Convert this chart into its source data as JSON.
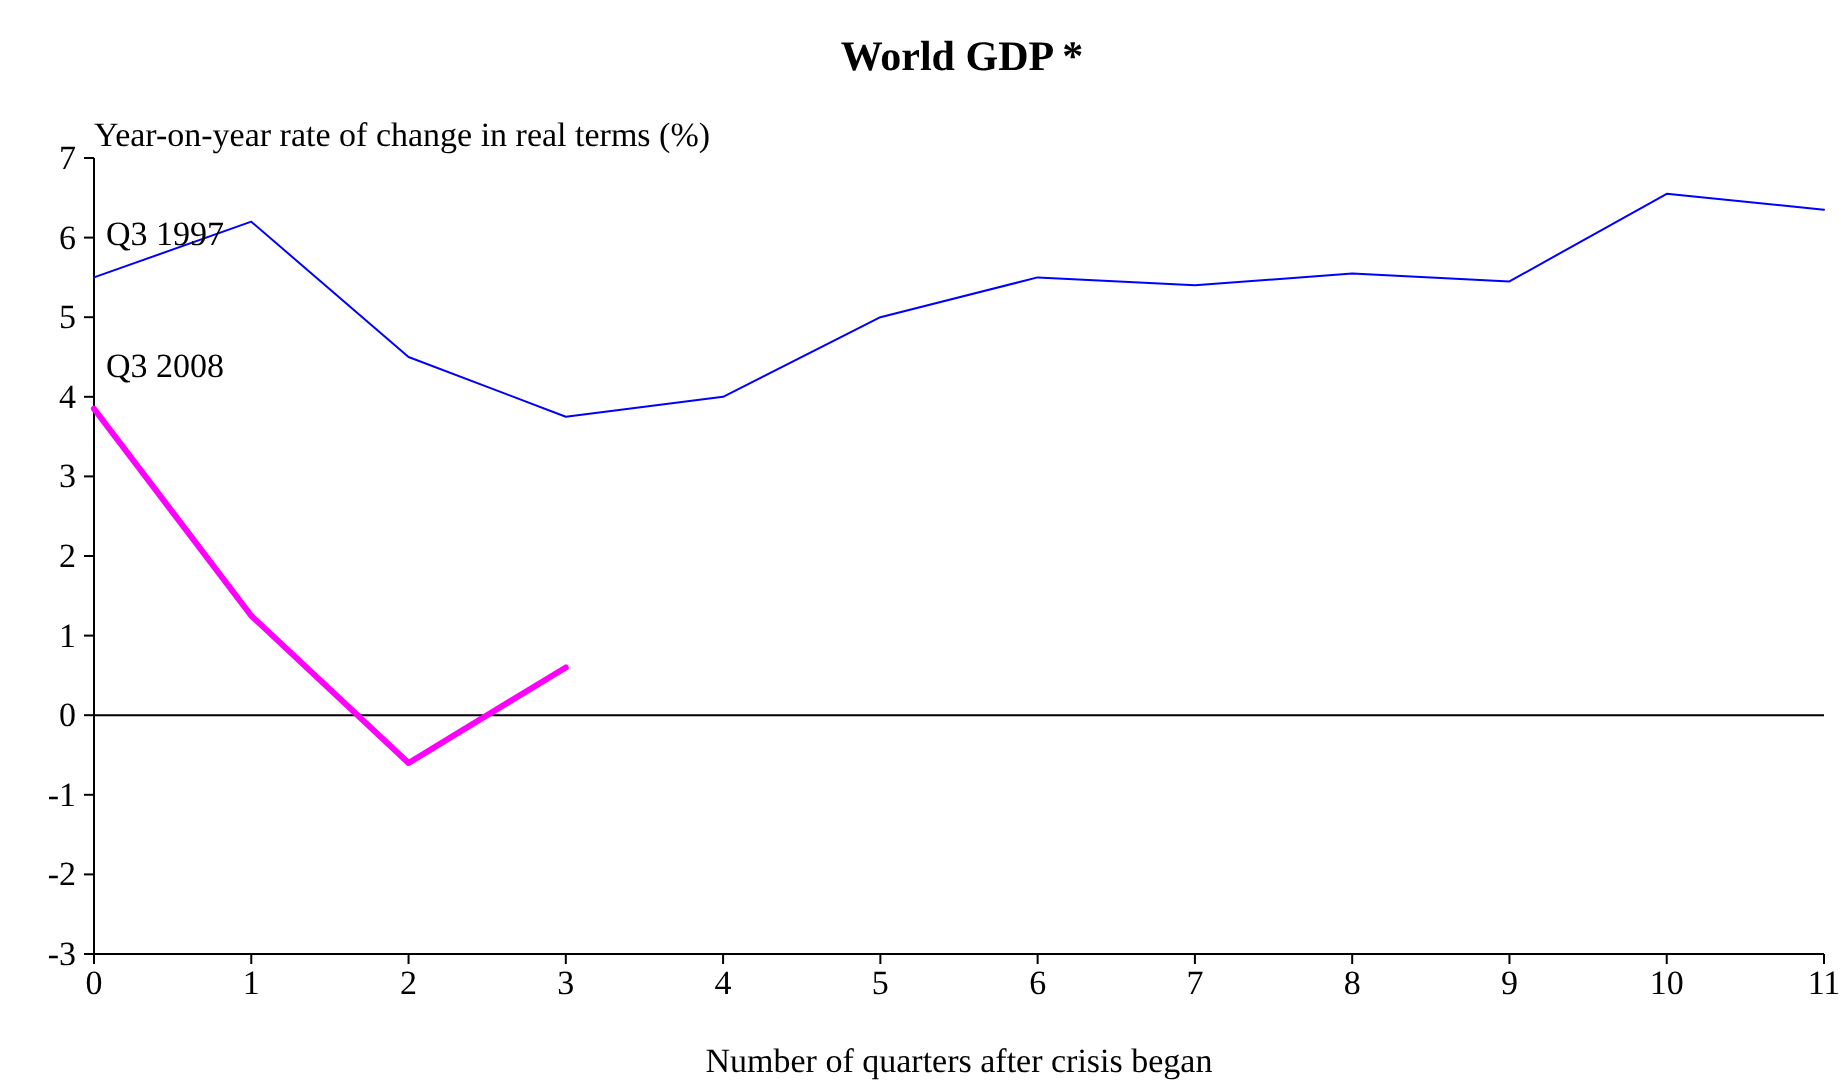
{
  "chart_data": {
    "type": "line",
    "title": "World GDP *",
    "xlabel": "Number of quarters after crisis began",
    "ylabel": "Year-on-year rate of change in real terms (%)",
    "x": [
      0,
      1,
      2,
      3,
      4,
      5,
      6,
      7,
      8,
      9,
      10,
      11
    ],
    "series": [
      {
        "name": "Q3 1997",
        "color": "#0000ff",
        "values": [
          5.5,
          6.2,
          4.5,
          3.75,
          4.0,
          5.0,
          5.5,
          5.4,
          5.55,
          5.45,
          6.55,
          6.35
        ]
      },
      {
        "name": "Q3 2008",
        "color": "#ff00ff",
        "values": [
          3.85,
          1.25,
          -0.6,
          0.6,
          null,
          null,
          null,
          null,
          null,
          null,
          null,
          null
        ]
      }
    ],
    "xlim": [
      0,
      11
    ],
    "xticks": [
      0,
      1,
      2,
      3,
      4,
      5,
      6,
      7,
      8,
      9,
      10,
      11
    ],
    "ylim": [
      -3,
      7
    ],
    "yticks": [
      -3,
      -2,
      -1,
      0,
      1,
      2,
      3,
      4,
      5,
      6,
      7
    ],
    "ref_lines": [
      {
        "axis": "y",
        "value": 0,
        "color": "#000000"
      }
    ],
    "grid": false,
    "legend": false,
    "marker": "none",
    "line_style": "solid"
  }
}
